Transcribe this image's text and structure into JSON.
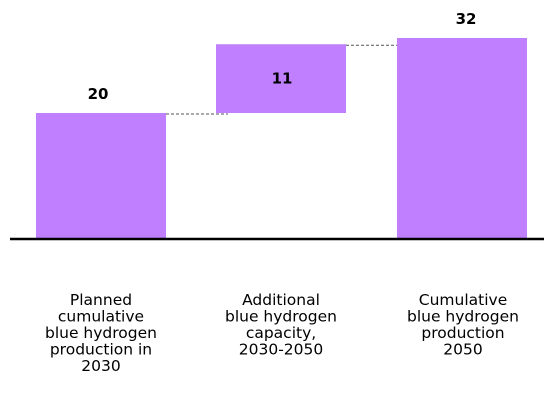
{
  "chart_data": {
    "type": "waterfall",
    "categories": [
      [
        "Planned",
        "cumulative",
        "blue hydrogen",
        "production  in",
        "2030"
      ],
      [
        "Additional",
        "blue hydrogen",
        "capacity,",
        "2030-2050"
      ],
      [
        "Cumulative",
        "blue hydrogen",
        "production",
        "2050"
      ]
    ],
    "bars": [
      {
        "kind": "total",
        "start": 0,
        "value": 20,
        "label": "20"
      },
      {
        "kind": "increment",
        "start": 20,
        "value": 11,
        "label": "11"
      },
      {
        "kind": "total",
        "start": 0,
        "value": 32,
        "label": "32"
      }
    ],
    "ylim": [
      0,
      32
    ],
    "grid": false,
    "bar_color": "#bf7fff",
    "axis_color": "#000000",
    "connector_color": "#555555",
    "label_color": "#000000"
  }
}
